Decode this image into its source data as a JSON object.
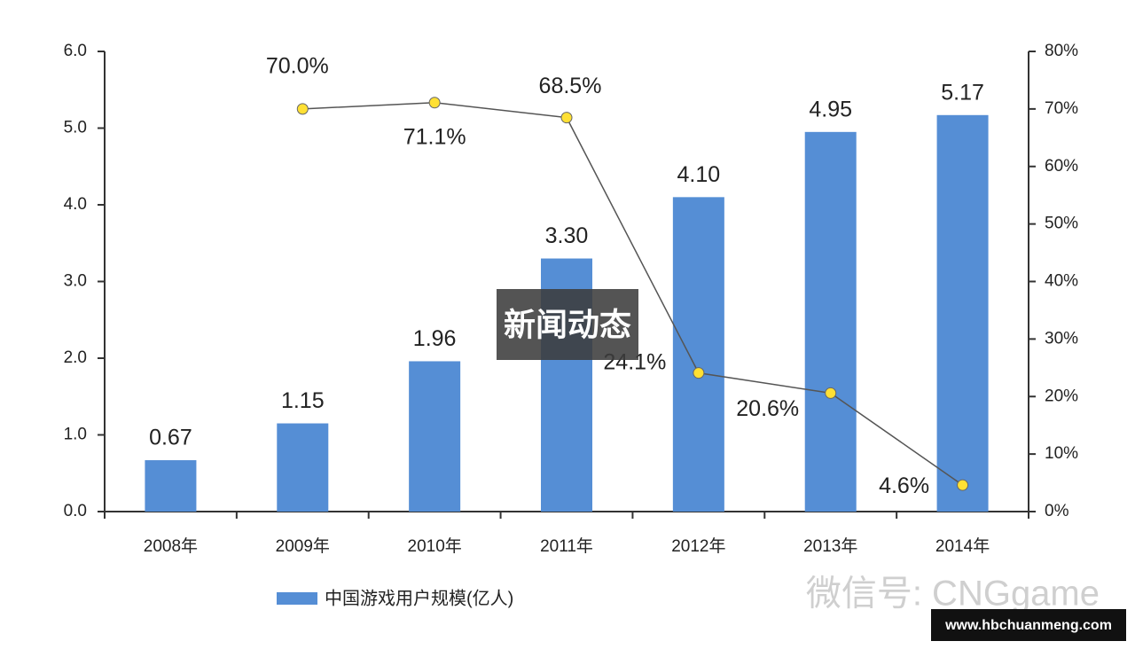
{
  "chart_data": {
    "type": "bar+line",
    "categories": [
      "2008年",
      "2009年",
      "2010年",
      "2011年",
      "2012年",
      "2013年",
      "2014年"
    ],
    "series": [
      {
        "name": "中国游戏用户规模(亿人)",
        "type": "bar",
        "color": "#558ed5",
        "values": [
          0.67,
          1.15,
          1.96,
          3.3,
          4.1,
          4.95,
          5.17
        ],
        "value_labels": [
          "0.67",
          "1.15",
          "1.96",
          "3.30",
          "4.10",
          "4.95",
          "5.17"
        ]
      },
      {
        "type": "line",
        "axis": "y2",
        "color": "#555555",
        "marker_color": "#ffe034",
        "values": [
          null,
          70.0,
          71.1,
          68.5,
          24.1,
          20.6,
          4.6
        ],
        "value_labels": [
          null,
          "70.0%",
          "71.1%",
          "68.5%",
          "24.1%",
          "20.6%",
          "4.6%"
        ]
      }
    ],
    "ylim": [
      0,
      6
    ],
    "yticks": [
      {
        "value": 0,
        "label": "0.0"
      },
      {
        "value": 1,
        "label": "1.0"
      },
      {
        "value": 2,
        "label": "2.0"
      },
      {
        "value": 3,
        "label": "3.0"
      },
      {
        "value": 4,
        "label": "4.0"
      },
      {
        "value": 5,
        "label": "5.0"
      },
      {
        "value": 6,
        "label": "6.0"
      }
    ],
    "y2lim": [
      0,
      80
    ],
    "y2ticks": [
      {
        "value": 0,
        "label": "0%"
      },
      {
        "value": 10,
        "label": "10%"
      },
      {
        "value": 20,
        "label": "20%"
      },
      {
        "value": 30,
        "label": "30%"
      },
      {
        "value": 40,
        "label": "40%"
      },
      {
        "value": 50,
        "label": "50%"
      },
      {
        "value": 60,
        "label": "60%"
      },
      {
        "value": 70,
        "label": "70%"
      },
      {
        "value": 80,
        "label": "80%"
      }
    ],
    "grid": false
  },
  "overlay": {
    "title": "新闻动态"
  },
  "watermark": {
    "text": "微信号: CNGgame"
  },
  "badge": {
    "text": "www.hbchuanmeng.com"
  }
}
